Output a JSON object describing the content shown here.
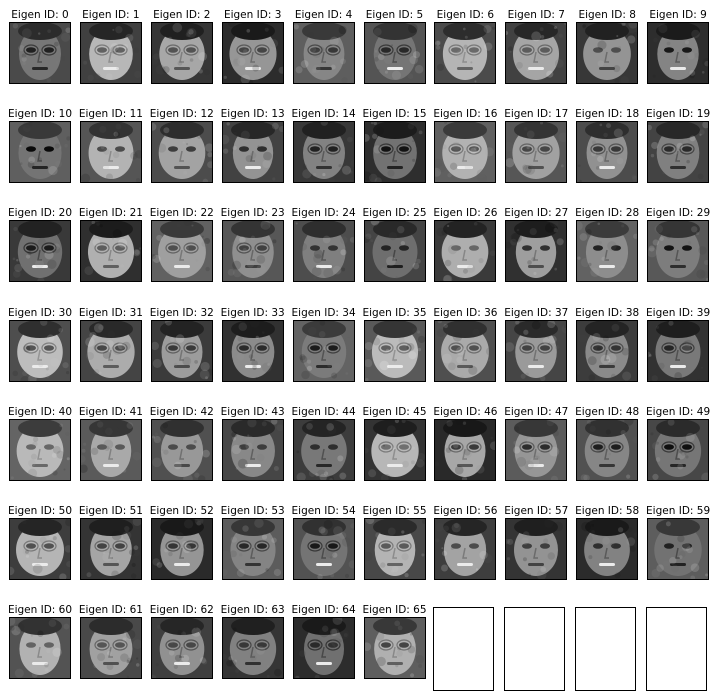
{
  "title_prefix": "Eigen ID: ",
  "panels": [
    {
      "label": "Eigen ID: 0"
    },
    {
      "label": "Eigen ID: 1"
    },
    {
      "label": "Eigen ID: 2"
    },
    {
      "label": "Eigen ID: 3"
    },
    {
      "label": "Eigen ID: 4"
    },
    {
      "label": "Eigen ID: 5"
    },
    {
      "label": "Eigen ID: 6"
    },
    {
      "label": "Eigen ID: 7"
    },
    {
      "label": "Eigen ID: 8"
    },
    {
      "label": "Eigen ID: 9"
    },
    {
      "label": "Eigen ID: 10"
    },
    {
      "label": "Eigen ID: 11"
    },
    {
      "label": "Eigen ID: 12"
    },
    {
      "label": "Eigen ID: 13"
    },
    {
      "label": "Eigen ID: 14"
    },
    {
      "label": "Eigen ID: 15"
    },
    {
      "label": "Eigen ID: 16"
    },
    {
      "label": "Eigen ID: 17"
    },
    {
      "label": "Eigen ID: 18"
    },
    {
      "label": "Eigen ID: 19"
    },
    {
      "label": "Eigen ID: 20"
    },
    {
      "label": "Eigen ID: 21"
    },
    {
      "label": "Eigen ID: 22"
    },
    {
      "label": "Eigen ID: 23"
    },
    {
      "label": "Eigen ID: 24"
    },
    {
      "label": "Eigen ID: 25"
    },
    {
      "label": "Eigen ID: 26"
    },
    {
      "label": "Eigen ID: 27"
    },
    {
      "label": "Eigen ID: 28"
    },
    {
      "label": "Eigen ID: 29"
    },
    {
      "label": "Eigen ID: 30"
    },
    {
      "label": "Eigen ID: 31"
    },
    {
      "label": "Eigen ID: 32"
    },
    {
      "label": "Eigen ID: 33"
    },
    {
      "label": "Eigen ID: 34"
    },
    {
      "label": "Eigen ID: 35"
    },
    {
      "label": "Eigen ID: 36"
    },
    {
      "label": "Eigen ID: 37"
    },
    {
      "label": "Eigen ID: 38"
    },
    {
      "label": "Eigen ID: 39"
    },
    {
      "label": "Eigen ID: 40"
    },
    {
      "label": "Eigen ID: 41"
    },
    {
      "label": "Eigen ID: 42"
    },
    {
      "label": "Eigen ID: 43"
    },
    {
      "label": "Eigen ID: 44"
    },
    {
      "label": "Eigen ID: 45"
    },
    {
      "label": "Eigen ID: 46"
    },
    {
      "label": "Eigen ID: 47"
    },
    {
      "label": "Eigen ID: 48"
    },
    {
      "label": "Eigen ID: 49"
    },
    {
      "label": "Eigen ID: 50"
    },
    {
      "label": "Eigen ID: 51"
    },
    {
      "label": "Eigen ID: 52"
    },
    {
      "label": "Eigen ID: 53"
    },
    {
      "label": "Eigen ID: 54"
    },
    {
      "label": "Eigen ID: 55"
    },
    {
      "label": "Eigen ID: 56"
    },
    {
      "label": "Eigen ID: 57"
    },
    {
      "label": "Eigen ID: 58"
    },
    {
      "label": "Eigen ID: 59"
    },
    {
      "label": "Eigen ID: 60"
    },
    {
      "label": "Eigen ID: 61"
    },
    {
      "label": "Eigen ID: 62"
    },
    {
      "label": "Eigen ID: 63"
    },
    {
      "label": "Eigen ID: 64"
    },
    {
      "label": "Eigen ID: 65"
    }
  ],
  "empty_panel_count": 4,
  "image_colormap": "grayscale"
}
